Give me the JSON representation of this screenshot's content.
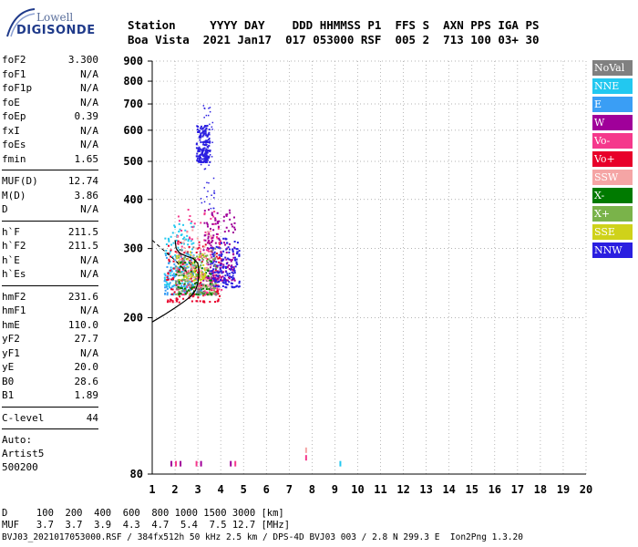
{
  "logo": {
    "brand": "Lowell",
    "product": "DIGISONDE"
  },
  "header": {
    "line1": "Station     YYYY DAY    DDD HHMMSS P1  FFS S  AXN PPS IGA PS",
    "line2": "Boa Vista  2021 Jan17  017 053000 RSF  005 2  713 100 03+ 30"
  },
  "params": [
    {
      "name": "foF2",
      "value": "3.300"
    },
    {
      "name": "foF1",
      "value": "N/A"
    },
    {
      "name": "foF1p",
      "value": "N/A"
    },
    {
      "name": "foE",
      "value": "N/A"
    },
    {
      "name": "foEp",
      "value": "0.39"
    },
    {
      "name": "fxI",
      "value": "N/A"
    },
    {
      "name": "foEs",
      "value": "N/A"
    },
    {
      "name": "fmin",
      "value": "1.65"
    },
    {
      "name": "MUF(D)",
      "value": "12.74"
    },
    {
      "name": "M(D)",
      "value": "3.86"
    },
    {
      "name": "D",
      "value": "N/A"
    },
    {
      "name": "h`F",
      "value": "211.5"
    },
    {
      "name": "h`F2",
      "value": "211.5"
    },
    {
      "name": "h`E",
      "value": "N/A"
    },
    {
      "name": "h`Es",
      "value": "N/A"
    },
    {
      "name": "hmF2",
      "value": "231.6"
    },
    {
      "name": "hmF1",
      "value": "N/A"
    },
    {
      "name": "hmE",
      "value": "110.0"
    },
    {
      "name": "yF2",
      "value": "27.7"
    },
    {
      "name": "yF1",
      "value": "N/A"
    },
    {
      "name": "yE",
      "value": "20.0"
    },
    {
      "name": "B0",
      "value": "28.6"
    },
    {
      "name": "B1",
      "value": "1.89"
    },
    {
      "name": "C-level",
      "value": "44"
    }
  ],
  "auto": {
    "label": "Auto:",
    "artist": "Artist5",
    "code": "500200"
  },
  "legend": [
    {
      "label": "NoVal",
      "color": "#808080"
    },
    {
      "label": "NNE",
      "color": "#22c8f0"
    },
    {
      "label": "E",
      "color": "#3a9ef5"
    },
    {
      "label": "W",
      "color": "#a0009a"
    },
    {
      "label": "Vo-",
      "color": "#f5388c"
    },
    {
      "label": "Vo+",
      "color": "#e8002a"
    },
    {
      "label": "SSW",
      "color": "#f5a5a5"
    },
    {
      "label": "X-",
      "color": "#007a00"
    },
    {
      "label": "X+",
      "color": "#7ab34a"
    },
    {
      "label": "SSE",
      "color": "#cfd21a"
    },
    {
      "label": "NNW",
      "color": "#2a1ee0"
    }
  ],
  "footer": {
    "line1": "D     100  200  400  600  800 1000 1500 3000 [km]",
    "line2": "MUF   3.7  3.7  3.9  4.3  4.7  5.4  7.5 12.7 [MHz]",
    "line3": "BVJ03_2021017053000.RSF / 384fx512h 50 kHz 2.5 km / DPS-4D BVJ03 003 / 2.8 N 299.3 E  Ion2Png 1.3.20"
  },
  "chart_data": {
    "type": "scatter",
    "title": "",
    "xlabel": "",
    "ylabel": "",
    "xlim": [
      1,
      20
    ],
    "ylim": [
      80,
      900
    ],
    "x_ticks": [
      1,
      2,
      3,
      4,
      5,
      6,
      7,
      8,
      9,
      10,
      11,
      12,
      13,
      14,
      15,
      16,
      17,
      18,
      19,
      20
    ],
    "y_ticks": [
      80,
      200,
      300,
      400,
      500,
      600,
      700,
      800,
      900
    ],
    "y_scale": "log",
    "grid": "dotted",
    "clusters": [
      {
        "name": "NNW",
        "x_range": [
          2.9,
          3.5
        ],
        "y_range": [
          500,
          620
        ],
        "density": 160
      },
      {
        "name": "NNE",
        "x_range": [
          1.5,
          2.8
        ],
        "y_range": [
          240,
          350
        ],
        "density": 140
      },
      {
        "name": "E",
        "x_range": [
          1.5,
          3.2
        ],
        "y_range": [
          230,
          300
        ],
        "density": 120
      },
      {
        "name": "Vo+",
        "x_range": [
          1.6,
          4.0
        ],
        "y_range": [
          220,
          320
        ],
        "density": 160
      },
      {
        "name": "Vo-",
        "x_range": [
          2.0,
          4.0
        ],
        "y_range": [
          230,
          380
        ],
        "density": 140
      },
      {
        "name": "W",
        "x_range": [
          3.2,
          4.6
        ],
        "y_range": [
          250,
          380
        ],
        "density": 170
      },
      {
        "name": "NNW",
        "x_range": [
          3.5,
          4.8
        ],
        "y_range": [
          240,
          320
        ],
        "density": 150
      },
      {
        "name": "X+",
        "x_range": [
          2.0,
          3.8
        ],
        "y_range": [
          230,
          290
        ],
        "density": 100
      },
      {
        "name": "X-",
        "x_range": [
          2.0,
          3.6
        ],
        "y_range": [
          230,
          280
        ],
        "density": 70
      },
      {
        "name": "SSE",
        "x_range": [
          2.0,
          3.3
        ],
        "y_range": [
          250,
          300
        ],
        "density": 60
      },
      {
        "name": "SSW",
        "x_range": [
          2.0,
          3.6
        ],
        "y_range": [
          240,
          340
        ],
        "density": 60
      },
      {
        "name": "NoVal",
        "x_range": [
          2.0,
          3.8
        ],
        "y_range": [
          230,
          310
        ],
        "density": 40
      }
    ],
    "low_points": [
      {
        "x": 1.8,
        "y": 85,
        "c": "W"
      },
      {
        "x": 2.0,
        "y": 85,
        "c": "Vo-"
      },
      {
        "x": 2.2,
        "y": 85,
        "c": "W"
      },
      {
        "x": 2.9,
        "y": 85,
        "c": "Vo-"
      },
      {
        "x": 3.1,
        "y": 85,
        "c": "W"
      },
      {
        "x": 4.4,
        "y": 85,
        "c": "W"
      },
      {
        "x": 4.6,
        "y": 85,
        "c": "Vo-"
      },
      {
        "x": 7.7,
        "y": 88,
        "c": "Vo-"
      },
      {
        "x": 7.7,
        "y": 92,
        "c": "SSW"
      },
      {
        "x": 9.2,
        "y": 85,
        "c": "NNE"
      }
    ],
    "profile_curve": {
      "x": [
        1.0,
        1.5,
        2.0,
        2.4,
        2.7,
        2.9,
        3.0,
        3.05,
        3.0,
        2.8,
        2.5,
        2.2,
        2.05,
        2.0
      ],
      "y": [
        195,
        203,
        212,
        220,
        227,
        235,
        245,
        260,
        275,
        283,
        287,
        292,
        300,
        315
      ]
    },
    "dashed_line": {
      "x": [
        1.0,
        2.0,
        2.5
      ],
      "y": [
        315,
        280,
        262
      ]
    }
  }
}
